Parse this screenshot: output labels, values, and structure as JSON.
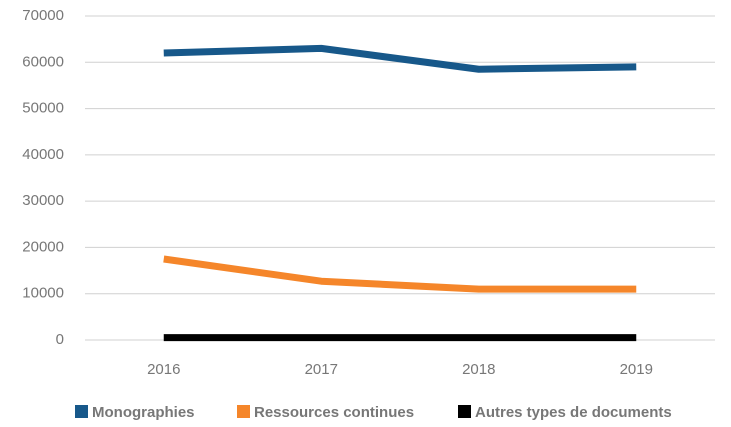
{
  "chart_data": {
    "type": "line",
    "categories": [
      "2016",
      "2017",
      "2018",
      "2019"
    ],
    "series": [
      {
        "name": "Monographies",
        "color": "#17588a",
        "values": [
          62000,
          63000,
          58500,
          59000
        ]
      },
      {
        "name": "Ressources continues",
        "color": "#f5862a",
        "values": [
          17500,
          12700,
          11000,
          11000
        ]
      },
      {
        "name": "Autres types de documents",
        "color": "#000000",
        "values": [
          500,
          500,
          500,
          500
        ]
      }
    ],
    "ylim": [
      0,
      70000
    ],
    "yticks": [
      0,
      10000,
      20000,
      30000,
      40000,
      50000,
      60000,
      70000
    ],
    "grid": true,
    "legend": "bottom"
  }
}
